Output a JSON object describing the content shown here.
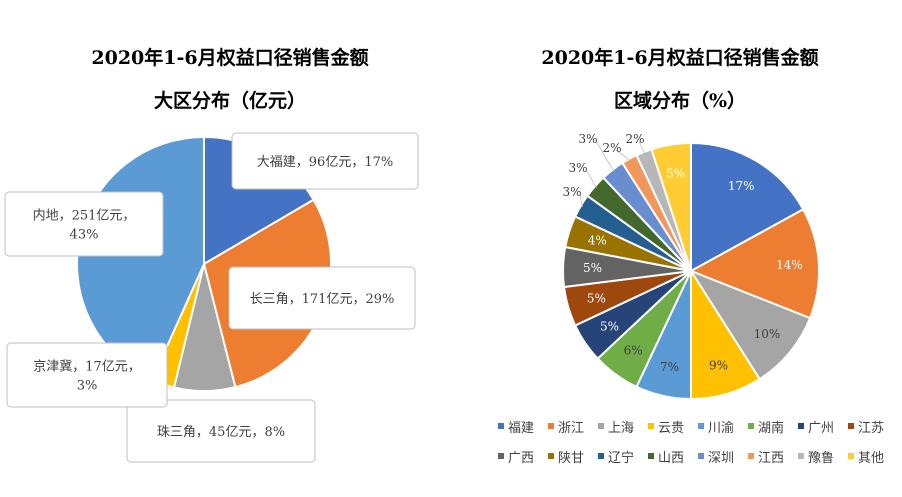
{
  "chart_data": [
    {
      "type": "pie",
      "title": "2020年1-6月权益口径销售金额",
      "subtitle": "大区分布（亿元）",
      "slices": [
        {
          "name": "大福建",
          "value": 96,
          "percent": 17,
          "color": "#4472C4",
          "label_lines": [
            "大福建，96亿元，17%"
          ]
        },
        {
          "name": "长三角",
          "value": 171,
          "percent": 29,
          "color": "#ED7D31",
          "label_lines": [
            "长三角，171亿元，29%"
          ]
        },
        {
          "name": "珠三角",
          "value": 45,
          "percent": 8,
          "color": "#A5A5A5",
          "label_lines": [
            "珠三角，45亿元，8%"
          ]
        },
        {
          "name": "京津冀",
          "value": 17,
          "percent": 3,
          "color": "#FFC000",
          "label_lines": [
            "京津冀，17亿元，",
            "3%"
          ]
        },
        {
          "name": "内地",
          "value": 251,
          "percent": 43,
          "color": "#5B9BD5",
          "label_lines": [
            "内地，251亿元，",
            "43%"
          ]
        }
      ]
    },
    {
      "type": "pie",
      "title": "2020年1-6月权益口径销售金额",
      "subtitle": "区域分布（%）",
      "legend_position": "bottom",
      "slices": [
        {
          "name": "福建",
          "value": 17,
          "label": "17%",
          "color": "#4472C4"
        },
        {
          "name": "浙江",
          "value": 14,
          "label": "14%",
          "color": "#ED7D31"
        },
        {
          "name": "上海",
          "value": 10,
          "label": "10%",
          "color": "#A5A5A5"
        },
        {
          "name": "云贵",
          "value": 9,
          "label": "9%",
          "color": "#FFC000"
        },
        {
          "name": "川渝",
          "value": 7,
          "label": "7%",
          "color": "#5B9BD5"
        },
        {
          "name": "湖南",
          "value": 6,
          "label": "6%",
          "color": "#70AD47"
        },
        {
          "name": "广州",
          "value": 5,
          "label": "5%",
          "color": "#264478"
        },
        {
          "name": "江苏",
          "value": 5,
          "label": "5%",
          "color": "#9E480E"
        },
        {
          "name": "广西",
          "value": 5,
          "label": "5%",
          "color": "#636363"
        },
        {
          "name": "陕甘",
          "value": 4,
          "label": "4%",
          "color": "#997300"
        },
        {
          "name": "辽宁",
          "value": 3,
          "label": "3%",
          "color": "#255E91"
        },
        {
          "name": "山西",
          "value": 3,
          "label": "3%",
          "color": "#43682B"
        },
        {
          "name": "深圳",
          "value": 3,
          "label": "3%",
          "color": "#698ED0"
        },
        {
          "name": "江西",
          "value": 2,
          "label": "2%",
          "color": "#F1975A"
        },
        {
          "name": "豫鲁",
          "value": 2,
          "label": "2%",
          "color": "#B7B7B7"
        },
        {
          "name": "其他",
          "value": 5,
          "label": "5%",
          "color": "#FFCD33"
        }
      ]
    }
  ]
}
